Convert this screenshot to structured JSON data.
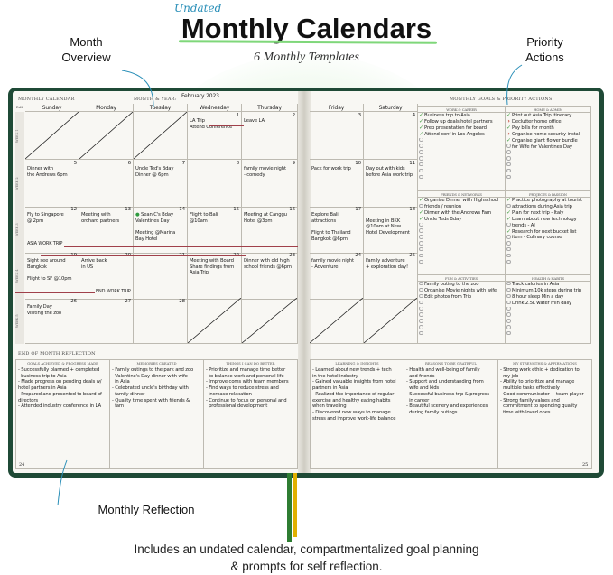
{
  "banner": {
    "tag": "Undated",
    "title": "Monthly Calendars",
    "subtitle": "6 Monthly Templates"
  },
  "callouts": {
    "month_overview": "Month Overview",
    "priority_actions": "Priority Actions",
    "monthly_reflection": "Monthly Reflection"
  },
  "caption": {
    "line1": "Includes an undated calendar, compartmentalized goal planning",
    "line2": "& prompts for self reflection."
  },
  "colors": {
    "cover": "#1f4a36",
    "accent_green": "#7fd77a",
    "arrow_blue": "#2a8fb8",
    "trip_line": "#a0404a",
    "check": "#3c9a3c",
    "pending": "#c0392b",
    "ribbon_green": "#2e7d32",
    "ribbon_yellow": "#e0b000"
  },
  "left_page": {
    "header": "MONTHLY CALENDAR",
    "month_label": "MONTH & YEAR:",
    "month_value": "February 2023",
    "day_label": "DAY",
    "page_number": "24",
    "days": [
      "Sunday",
      "Monday",
      "Tuesday",
      "Wednesday",
      "Thursday"
    ]
  },
  "right_page": {
    "header": "MONTHLY GOALS & PRIORITY ACTIONS",
    "page_number": "25",
    "days": [
      "Friday",
      "Saturday"
    ]
  },
  "weeks": [
    {
      "label": "WEEK 1",
      "cells": [
        {
          "crossed": true
        },
        {
          "crossed": true
        },
        {
          "crossed": true
        },
        {
          "day": "1",
          "notes": [
            "LA Trip",
            "Attend Conference"
          ]
        },
        {
          "day": "2",
          "notes": [
            "Leave LA"
          ]
        },
        {
          "day": "3",
          "notes": []
        },
        {
          "day": "4",
          "notes": []
        }
      ]
    },
    {
      "label": "WEEK 2",
      "cells": [
        {
          "day": "5",
          "notes": [
            "Dinner with",
            "the Andrews 6pm"
          ]
        },
        {
          "day": "6",
          "notes": []
        },
        {
          "day": "7",
          "notes": [
            "Uncle Ted's Bday",
            "Dinner @ 6pm"
          ]
        },
        {
          "day": "8",
          "notes": []
        },
        {
          "day": "9",
          "notes": [
            "family movie night",
            "- comedy"
          ]
        },
        {
          "day": "10",
          "notes": [
            "Pack for work trip"
          ]
        },
        {
          "day": "11",
          "notes": [
            "Day out with kids",
            "before Asia work trip"
          ]
        }
      ]
    },
    {
      "label": "WEEK 3",
      "cells": [
        {
          "day": "12",
          "notes": [
            "Fly to Singapore",
            "@ 2pm"
          ]
        },
        {
          "day": "13",
          "notes": [
            "Meeting with",
            "orchard partners"
          ]
        },
        {
          "day": "14",
          "notes": [
            "● Sean C's Bday",
            "Valentines Day",
            "",
            "Meeting @Marina",
            "Bay Hotel"
          ]
        },
        {
          "day": "15",
          "notes": [
            "Flight to Bali",
            "@10am"
          ]
        },
        {
          "day": "16",
          "notes": [
            "Meeting at Canggu",
            "Hotel @3pm"
          ]
        },
        {
          "day": "17",
          "notes": [
            "Explore Bali",
            "attractions",
            "",
            "Flight to Thailand",
            "Bangkok @6pm"
          ]
        },
        {
          "day": "18",
          "notes": [
            "",
            "Meeting in BKK",
            "@10am at New",
            "Hotel Development"
          ]
        }
      ]
    },
    {
      "label": "WEEK 4",
      "cells": [
        {
          "day": "19",
          "notes": [
            "Sight see around",
            "Bangkok",
            "",
            "Flight to SF @10pm"
          ]
        },
        {
          "day": "20",
          "notes": [
            "Arrive back",
            "in US"
          ]
        },
        {
          "day": "21",
          "notes": []
        },
        {
          "day": "22",
          "notes": [
            "Meeting with Board",
            "Share findings from",
            "Asia Trip"
          ]
        },
        {
          "day": "23",
          "notes": [
            "Dinner with old high",
            "school friends @6pm"
          ]
        },
        {
          "day": "24",
          "notes": [
            "family movie night",
            "- Adventure"
          ]
        },
        {
          "day": "25",
          "notes": [
            "Family adventure",
            "+ exploration day!"
          ]
        }
      ]
    },
    {
      "label": "WEEK 5",
      "cells": [
        {
          "day": "26",
          "notes": [
            "Family Day",
            "visiting the zoo"
          ]
        },
        {
          "day": "27",
          "notes": []
        },
        {
          "day": "28",
          "notes": []
        },
        {
          "crossed": true
        },
        {
          "crossed": true
        },
        {
          "crossed": true
        },
        {
          "crossed": true
        }
      ]
    }
  ],
  "trip_bands": {
    "start": "ASIA WORK TRIP",
    "end": "END WORK TRIP"
  },
  "goals": [
    {
      "title": "WORK & CAREER",
      "items": [
        {
          "s": "done",
          "t": "Business trip to Asia"
        },
        {
          "s": "done",
          "t": "Follow up deals hotel partners"
        },
        {
          "s": "done",
          "t": "Prep presentation for board"
        },
        {
          "s": "done",
          "t": "Attend conf in Los Angeles"
        },
        {
          "s": "empty",
          "t": ""
        },
        {
          "s": "empty",
          "t": ""
        },
        {
          "s": "empty",
          "t": ""
        },
        {
          "s": "empty",
          "t": ""
        },
        {
          "s": "empty",
          "t": ""
        },
        {
          "s": "empty",
          "t": ""
        },
        {
          "s": "empty",
          "t": ""
        }
      ]
    },
    {
      "title": "HOME & ADMIN",
      "items": [
        {
          "s": "done",
          "t": "Print out Asia Trip itinerary"
        },
        {
          "s": "next",
          "t": "Declutter home office"
        },
        {
          "s": "done",
          "t": "Pay bills for month"
        },
        {
          "s": "next",
          "t": "Organise home security install"
        },
        {
          "s": "done",
          "t": "Organise giant flower bundle"
        },
        {
          "s": "empty",
          "t": "for Wife for Valentines Day"
        },
        {
          "s": "empty",
          "t": ""
        },
        {
          "s": "empty",
          "t": ""
        },
        {
          "s": "empty",
          "t": ""
        },
        {
          "s": "empty",
          "t": ""
        },
        {
          "s": "empty",
          "t": ""
        }
      ]
    },
    {
      "title": "FRIENDS & NETWORKS",
      "items": [
        {
          "s": "done",
          "t": "Organise Dinner with Highschool"
        },
        {
          "s": "empty",
          "t": "friends / reunion"
        },
        {
          "s": "done",
          "t": "Dinner with the Andrews Fam"
        },
        {
          "s": "done",
          "t": "Uncle Teds Bday"
        },
        {
          "s": "empty",
          "t": ""
        },
        {
          "s": "empty",
          "t": ""
        },
        {
          "s": "empty",
          "t": ""
        },
        {
          "s": "empty",
          "t": ""
        },
        {
          "s": "empty",
          "t": ""
        },
        {
          "s": "empty",
          "t": ""
        },
        {
          "s": "empty",
          "t": ""
        }
      ]
    },
    {
      "title": "PROJECTS & PASSION",
      "items": [
        {
          "s": "done",
          "t": "Practice photography at tourist"
        },
        {
          "s": "empty",
          "t": "attractions during Asia trip"
        },
        {
          "s": "done",
          "t": "Plan for next trip - Italy"
        },
        {
          "s": "done",
          "t": "Learn about new technology"
        },
        {
          "s": "empty",
          "t": "trends - AI"
        },
        {
          "s": "done",
          "t": "Research for next bucket list"
        },
        {
          "s": "empty",
          "t": "item - Culinary course"
        },
        {
          "s": "empty",
          "t": ""
        },
        {
          "s": "empty",
          "t": ""
        },
        {
          "s": "empty",
          "t": ""
        },
        {
          "s": "empty",
          "t": ""
        }
      ]
    },
    {
      "title": "FUN & ACTIVITIES",
      "items": [
        {
          "s": "empty",
          "t": "Family outing to the zoo"
        },
        {
          "s": "empty",
          "t": "Organise Movie nights with wife"
        },
        {
          "s": "empty",
          "t": "Edit photos from Trip"
        },
        {
          "s": "empty",
          "t": ""
        },
        {
          "s": "empty",
          "t": ""
        },
        {
          "s": "empty",
          "t": ""
        },
        {
          "s": "empty",
          "t": ""
        },
        {
          "s": "empty",
          "t": ""
        },
        {
          "s": "empty",
          "t": ""
        }
      ]
    },
    {
      "title": "HEALTH & HABITS",
      "items": [
        {
          "s": "empty",
          "t": "Track calories in Asia"
        },
        {
          "s": "empty",
          "t": "Minimum 10k steps during trip"
        },
        {
          "s": "empty",
          "t": "8 hour sleep Min a day"
        },
        {
          "s": "empty",
          "t": "Drink 2.5L water min daily"
        },
        {
          "s": "empty",
          "t": ""
        },
        {
          "s": "empty",
          "t": ""
        },
        {
          "s": "empty",
          "t": ""
        },
        {
          "s": "empty",
          "t": ""
        },
        {
          "s": "empty",
          "t": ""
        }
      ]
    }
  ],
  "reflection": {
    "header": "END OF MONTH REFLECTION",
    "left": [
      {
        "title": "GOALS ACHIEVED & PROGRESS MADE",
        "lines": [
          "- Successfully planned + completed",
          "  business trip to Asia",
          "- Made progress on pending deals w/",
          "hotel partners in Asia",
          "- Prepared and presented to board of",
          "directors",
          "- Attended industry conference in LA"
        ]
      },
      {
        "title": "MEMORIES CREATED",
        "lines": [
          "- Family outings to the park and zoo",
          "- Valentine's Day dinner with wife",
          "  in Asia",
          "- Celebrated uncle's birthday with",
          "  family dinner",
          "- Quality time spent with friends &",
          "  fam"
        ]
      },
      {
        "title": "THINGS I CAN DO BETTER",
        "lines": [
          "- Prioritize and manage time better",
          "  to balance work and personal life",
          "- Improve coms with team members",
          "- Find ways to reduce stress and",
          "  increase relaxation",
          "- Continue to focus on personal and",
          "  professional development"
        ]
      }
    ],
    "right": [
      {
        "title": "LEARNING & INSIGHTS",
        "lines": [
          "- Learned about new trends + tech",
          "in the hotel industry",
          "- Gained valuable insights from hotel",
          "partners in Asia",
          "- Realized the importance of regular",
          "exercise and healthy eating habits",
          "when traveling",
          "- Discovered new ways to manage",
          "stress and improve work-life balance"
        ]
      },
      {
        "title": "REASONS TO BE GRATEFUL",
        "lines": [
          "- Health and well-being of family",
          "  and friends",
          "- Support and understanding from",
          "  wife and kids",
          "- Successful business trip & progress",
          "  in career",
          "- Beautiful scenery and experiences",
          "  during family outings"
        ]
      },
      {
        "title": "MY STRENGTHS & AFFIRMATIONS",
        "lines": [
          "- Strong work ethic + dedication to",
          "  my job",
          "- Ability to prioritize and manage",
          "  multiple tasks effectively",
          "- Good communicator + team player",
          "- Strong family values and",
          "  commitment to spending quality",
          "  time with loved ones."
        ]
      }
    ]
  }
}
